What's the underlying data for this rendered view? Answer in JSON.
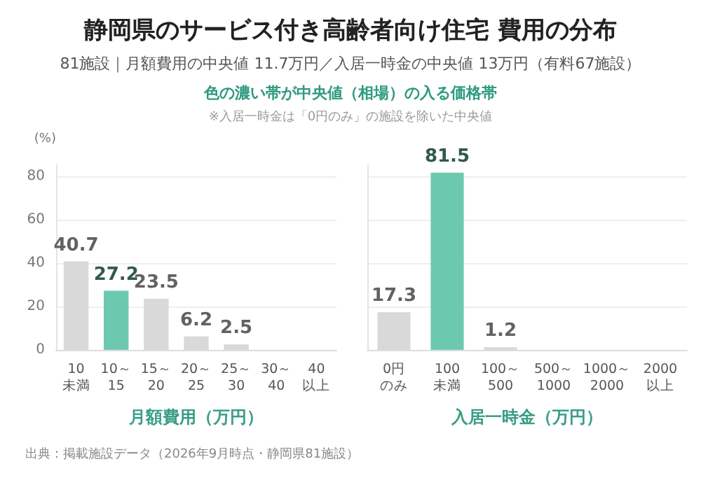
{
  "chart_data": [
    {
      "type": "bar",
      "title": "静岡県のサービス付き高齢者向け住宅 費用の分布",
      "subtitle": "81施設｜月額費用の中央値 11.7万円／入居一時金の中央値 13万円（有料67施設）",
      "annotations": [
        "色の濃い帯が中央値（相場）の入る価格帯",
        "※入居一時金は「0円のみ」の施設を除いた中央値",
        "出典：掲載施設データ（2026年9月時点・静岡県81施設）"
      ],
      "ylabel": "(%)",
      "xlabel": "月額費用（万円）",
      "categories": [
        "10未満",
        "10～15",
        "15～20",
        "20～25",
        "25～30",
        "30～40",
        "40以上"
      ],
      "values": [
        40.7,
        27.2,
        23.5,
        6.2,
        2.5,
        0,
        0
      ],
      "value_labels": [
        "40.7",
        "27.2",
        "23.5",
        "6.2",
        "2.5",
        null,
        null
      ],
      "colors": [
        "#d9d9d9",
        "#6cc9b0",
        "#d9d9d9",
        "#d9d9d9",
        "#d9d9d9",
        "#d9d9d9",
        "#d9d9d9"
      ],
      "ylim": [
        0,
        85
      ],
      "yticks": [
        0,
        20,
        40,
        60,
        80
      ],
      "grid": "y"
    },
    {
      "type": "bar",
      "xlabel": "入居一時金（万円）",
      "categories": [
        "0円のみ",
        "100未満",
        "100～500",
        "500～1000",
        "1000～2000",
        "2000以上"
      ],
      "values": [
        17.3,
        81.5,
        1.2,
        0,
        0,
        0
      ],
      "value_labels": [
        "17.3",
        "81.5",
        "1.2",
        null,
        null,
        null
      ],
      "colors": [
        "#d9d9d9",
        "#6cc9b0",
        "#d9d9d9",
        "#d9d9d9",
        "#d9d9d9",
        "#d9d9d9"
      ],
      "ylim": [
        0,
        85
      ],
      "yticks": [
        0,
        20,
        40,
        60,
        80
      ],
      "grid": "y",
      "tick_labels": "x"
    }
  ]
}
